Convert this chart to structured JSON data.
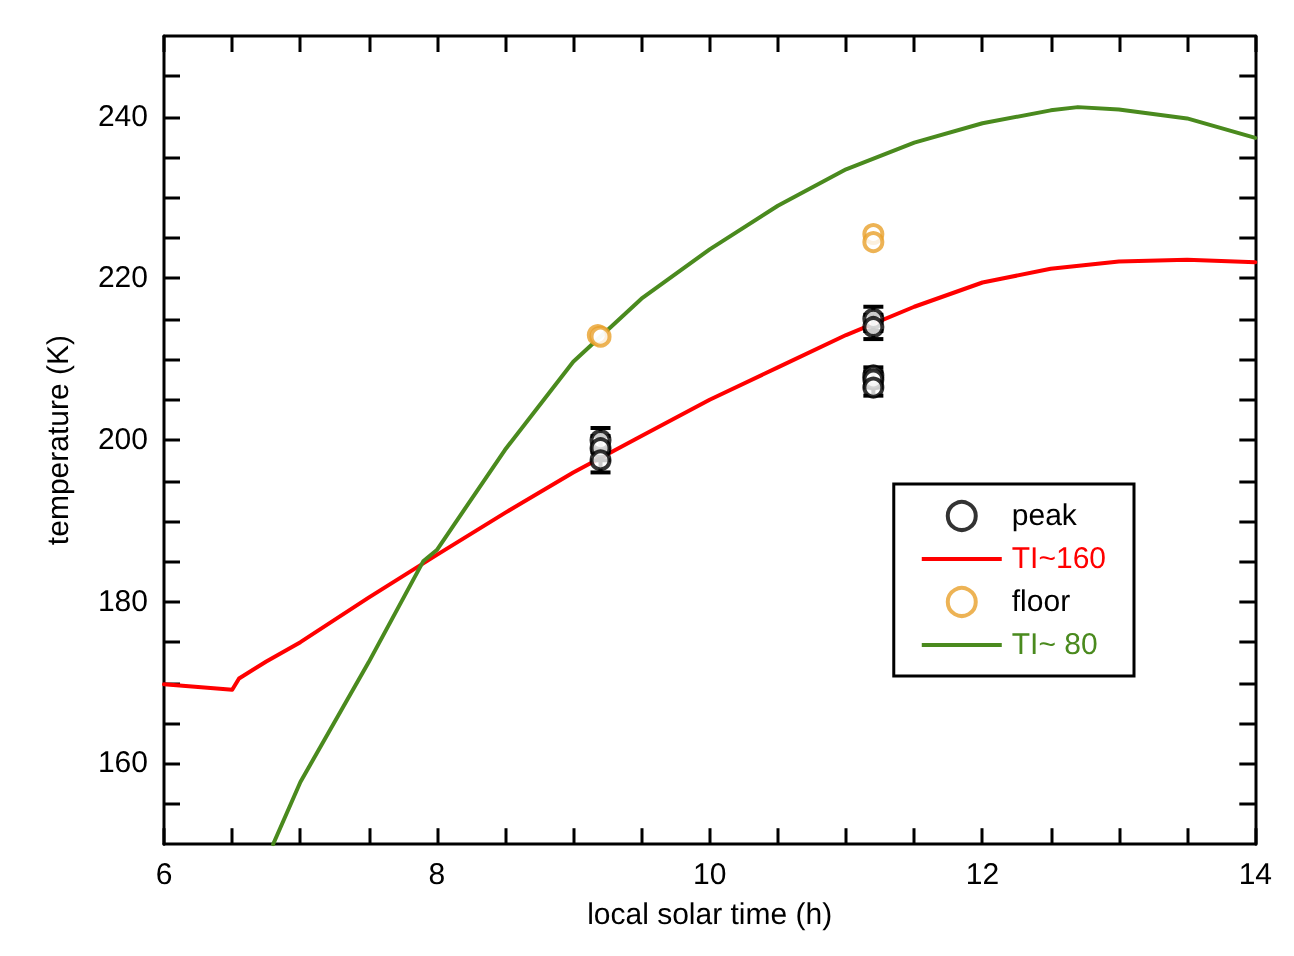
{
  "chart_data": {
    "type": "line",
    "xlabel": "local solar time (h)",
    "ylabel": "temperature (K)",
    "xlim": [
      6,
      14
    ],
    "xticks": [
      6,
      {
        "value": 6.5,
        "label": null
      },
      {
        "value": 7,
        "label": null
      },
      {
        "value": 7.5,
        "label": null
      },
      8,
      {
        "value": 8.5,
        "label": null
      },
      {
        "value": 9,
        "label": null
      },
      {
        "value": 9.5,
        "label": null
      },
      10,
      {
        "value": 10.5,
        "label": null
      },
      {
        "value": 11,
        "label": null
      },
      {
        "value": 11.5,
        "label": null
      },
      12,
      {
        "value": 12.5,
        "label": null
      },
      {
        "value": 13,
        "label": null
      },
      {
        "value": 13.5,
        "label": null
      },
      14
    ],
    "ylim": [
      150,
      250
    ],
    "yticks": [
      {
        "value": 155,
        "label": null
      },
      160,
      {
        "value": 165,
        "label": null
      },
      {
        "value": 170,
        "label": null
      },
      {
        "value": 175,
        "label": null
      },
      180,
      {
        "value": 185,
        "label": null
      },
      {
        "value": 190,
        "label": null
      },
      {
        "value": 195,
        "label": null
      },
      200,
      {
        "value": 205,
        "label": null
      },
      {
        "value": 210,
        "label": null
      },
      {
        "value": 215,
        "label": null
      },
      220,
      {
        "value": 225,
        "label": null
      },
      {
        "value": 230,
        "label": null
      },
      {
        "value": 235,
        "label": null
      },
      240,
      {
        "value": 245,
        "label": null
      }
    ],
    "grid": false,
    "legend": "bottom right",
    "line_style": "solid",
    "series": [
      {
        "name": "peak",
        "type": "scatter",
        "marker": "circle",
        "color": "#000000",
        "x": [
          9.2,
          9.2,
          9.2,
          11.2,
          11.2,
          11.2,
          11.2,
          11.2
        ],
        "values": [
          200,
          199,
          197.5,
          215,
          214,
          208,
          207.5,
          206.5
        ],
        "errors": [
          1.5,
          1.5,
          1.5,
          1.5,
          1.5,
          1,
          1,
          1
        ]
      },
      {
        "name": "TI~160",
        "color": "#ff0000",
        "x": [
          6,
          6.5,
          6.55,
          6.75,
          7,
          7.5,
          8,
          8.5,
          9,
          9.5,
          10,
          10.5,
          11,
          11.5,
          12,
          12.5,
          13,
          13.5,
          14
        ],
        "values": [
          169.8,
          169.1,
          170.5,
          172.6,
          175,
          180.5,
          185.8,
          191,
          196,
          200.5,
          205,
          209,
          213,
          216.5,
          219.5,
          221.2,
          222.1,
          222.3,
          222
        ]
      },
      {
        "name": "floor",
        "type": "scatter",
        "marker": "circle",
        "color": "#e8a02a",
        "x": [
          9.18,
          9.2,
          11.2,
          11.2
        ],
        "values": [
          213,
          212.8,
          225.5,
          224.5
        ]
      },
      {
        "name": "TI~ 80",
        "color": "#4a8a1e",
        "x": [
          6.8,
          7,
          7.5,
          7.9,
          8,
          8.5,
          9,
          9.5,
          10,
          10.5,
          11,
          11.5,
          12,
          12.5,
          12.7,
          13,
          13.5,
          14
        ],
        "values": [
          150,
          157.7,
          172.5,
          185,
          186.4,
          198.8,
          209.7,
          217.5,
          223.6,
          229,
          233.5,
          236.8,
          239.2,
          240.8,
          241.2,
          240.9,
          239.8,
          237.4
        ]
      }
    ]
  }
}
